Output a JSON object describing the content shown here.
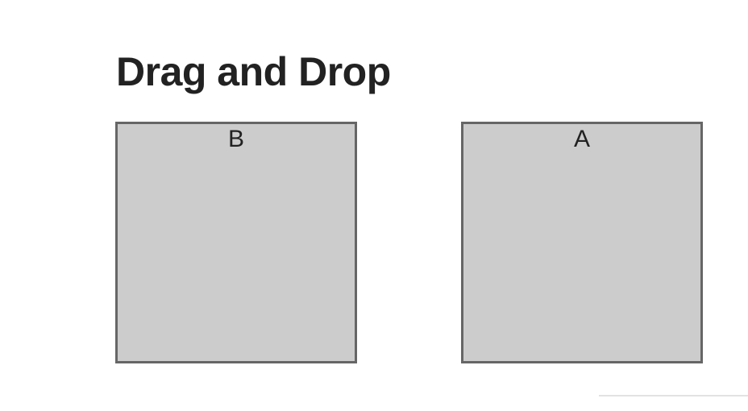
{
  "page": {
    "title": "Drag and Drop"
  },
  "columns": [
    {
      "header": "B"
    },
    {
      "header": "A"
    }
  ],
  "colors": {
    "box_fill": "#cccccc",
    "box_border": "#666666",
    "text": "#222222"
  }
}
